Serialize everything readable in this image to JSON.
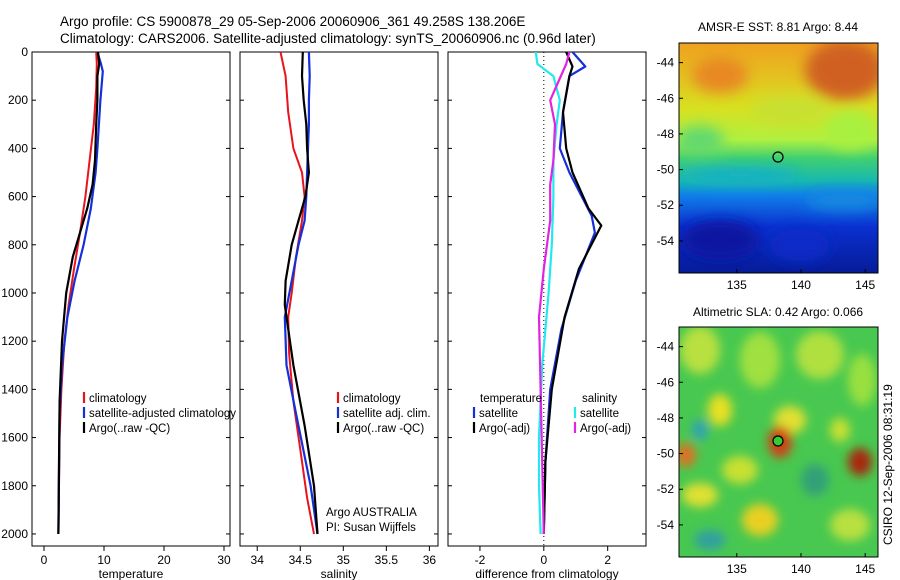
{
  "header": {
    "line1": "Argo profile: CS 5900878_29 05-Sep-2006 20060906_361 49.258S 138.206E",
    "line2": "Climatology: CARS2006. Satellite-adjusted climatology: synTS_20060906.nc (0.96d later)"
  },
  "side_label": "CSIRO 12-Sep-2006 08:31:19",
  "credit": {
    "line1": "Argo AUSTRALIA",
    "line2": "PI: Susan Wijffels"
  },
  "colors": {
    "red": "#e8141c",
    "blue": "#1530d8",
    "black": "#000000",
    "cyan": "#22e8f0",
    "magenta": "#e024e0"
  },
  "chart_data": [
    {
      "type": "line",
      "xlabel": "temperature",
      "ylabel": "",
      "xlim": [
        -2,
        31
      ],
      "ylim": [
        2050,
        0
      ],
      "xticks": [
        "0",
        "10",
        "20",
        "30"
      ],
      "yticks": [
        "0",
        "200",
        "400",
        "600",
        "800",
        "1000",
        "1200",
        "1400",
        "1600",
        "1800",
        "2000"
      ],
      "legend": [
        "climatology",
        "satellite-adjusted climatology",
        "Argo(..raw -QC)"
      ],
      "series": [
        {
          "name": "climatology",
          "color": "red",
          "x": [
            8.7,
            8.8,
            8.7,
            8.3,
            7.6,
            6.9,
            6.0,
            5.0,
            4.1,
            3.4,
            2.9,
            2.6,
            2.5,
            2.4
          ],
          "y": [
            0,
            50,
            150,
            300,
            450,
            600,
            750,
            900,
            1050,
            1200,
            1400,
            1600,
            1800,
            2000
          ]
        },
        {
          "name": "satellite-adjusted climatology",
          "color": "blue",
          "x": [
            8.9,
            9.5,
            9.8,
            9.4,
            8.9,
            8.6,
            7.8,
            6.6,
            5.1,
            3.9,
            3.0,
            2.6,
            2.5,
            2.4
          ],
          "y": [
            0,
            50,
            80,
            200,
            400,
            500,
            650,
            800,
            950,
            1100,
            1300,
            1500,
            1750,
            2000
          ]
        },
        {
          "name": "Argo(..raw -QC)",
          "color": "black",
          "x": [
            9.0,
            9.2,
            8.9,
            8.9,
            8.7,
            8.5,
            8.1,
            7.2,
            6.0,
            4.8,
            3.7,
            3.0,
            2.6,
            2.5,
            2.4
          ],
          "y": [
            0,
            50,
            100,
            200,
            300,
            450,
            550,
            650,
            750,
            850,
            1000,
            1200,
            1450,
            1700,
            2000
          ]
        }
      ]
    },
    {
      "type": "line",
      "xlabel": "salinity",
      "xlim": [
        33.8,
        36.1
      ],
      "ylim": [
        2050,
        0
      ],
      "xticks": [
        "34",
        "34.5",
        "35",
        "35.5",
        "36"
      ],
      "legend": [
        "climatology",
        "satellite adj. clim.",
        "Argo(..raw -QC)"
      ],
      "series": [
        {
          "name": "climatology",
          "color": "red",
          "x": [
            34.27,
            34.33,
            34.36,
            34.42,
            34.52,
            34.55,
            34.52,
            34.45,
            34.4,
            34.36,
            34.37,
            34.42,
            34.5,
            34.58,
            34.66
          ],
          "y": [
            0,
            100,
            250,
            400,
            500,
            600,
            700,
            850,
            1000,
            1100,
            1250,
            1450,
            1650,
            1850,
            2000
          ]
        },
        {
          "name": "satellite adj. clim.",
          "color": "blue",
          "x": [
            34.6,
            34.61,
            34.6,
            34.6,
            34.59,
            34.58,
            34.57,
            34.55,
            34.48,
            34.4,
            34.32,
            34.34,
            34.45,
            34.62,
            34.7
          ],
          "y": [
            0,
            100,
            200,
            300,
            400,
            500,
            600,
            700,
            800,
            950,
            1100,
            1300,
            1500,
            1800,
            2000
          ]
        },
        {
          "name": "Argo(..raw -QC)",
          "color": "black",
          "x": [
            34.53,
            34.52,
            34.54,
            34.57,
            34.58,
            34.6,
            34.56,
            34.48,
            34.4,
            34.33,
            34.32,
            34.42,
            34.55,
            34.66,
            34.7
          ],
          "y": [
            0,
            100,
            200,
            300,
            400,
            500,
            600,
            700,
            800,
            950,
            1050,
            1300,
            1550,
            1800,
            2000
          ]
        }
      ]
    },
    {
      "type": "line",
      "xlabel": "difference from climatology",
      "xlim": [
        -3,
        3.2
      ],
      "ylim": [
        2050,
        0
      ],
      "xticks": [
        "-2",
        "0",
        "2"
      ],
      "legend": [
        "temperature",
        "satellite",
        "Argo(-adj)",
        "salinity",
        "satellite",
        "Argo(-adj)"
      ],
      "series": [
        {
          "name": "temperature satellite",
          "color": "blue",
          "x": [
            0.9,
            1.3,
            0.8,
            0.6,
            0.5,
            0.8,
            1.5,
            1.6,
            1.0,
            0.55,
            0.2,
            0.05,
            0.0
          ],
          "y": [
            0,
            60,
            100,
            250,
            400,
            500,
            680,
            750,
            950,
            1150,
            1400,
            1700,
            2000
          ]
        },
        {
          "name": "temperature Argo(-adj)",
          "color": "black",
          "x": [
            0.7,
            0.9,
            0.8,
            0.6,
            0.7,
            0.9,
            1.4,
            1.8,
            1.1,
            0.65,
            0.25,
            0.05,
            0.0
          ],
          "y": [
            0,
            60,
            100,
            250,
            400,
            500,
            650,
            720,
            900,
            1100,
            1400,
            1700,
            2000
          ]
        },
        {
          "name": "salinity satellite",
          "color": "cyan",
          "x": [
            -0.25,
            -0.2,
            0.3,
            0.5,
            0.4,
            0.3,
            0.3,
            0.25,
            0.15,
            -0.05,
            -0.15,
            -0.15,
            -0.1
          ],
          "y": [
            0,
            50,
            100,
            200,
            300,
            450,
            600,
            800,
            1000,
            1300,
            1600,
            1800,
            2000
          ]
        },
        {
          "name": "salinity Argo(-adj)",
          "color": "magenta",
          "x": [
            0.8,
            0.7,
            0.2,
            0.35,
            0.3,
            0.2,
            0.2,
            0.0,
            -0.15,
            -0.1,
            -0.05,
            0.0
          ],
          "y": [
            0,
            50,
            200,
            300,
            450,
            550,
            700,
            900,
            1100,
            1400,
            1700,
            2000
          ]
        }
      ]
    },
    {
      "type": "heatmap",
      "title": "AMSR-E SST: 8.81 Argo: 8.44",
      "xlim": [
        130.5,
        146
      ],
      "ylim": [
        -55.8,
        -42.9
      ],
      "xticks": [
        "135",
        "140",
        "145"
      ],
      "yticks": [
        "-44",
        "-46",
        "-48",
        "-50",
        "-52",
        "-54"
      ],
      "marker": {
        "lon": 138.206,
        "lat": -49.258,
        "fill": "none"
      }
    },
    {
      "type": "heatmap",
      "title": "Altimetric SLA: 0.42 Argo: 0.066",
      "xlim": [
        130.5,
        146
      ],
      "ylim": [
        -55.8,
        -42.9
      ],
      "xticks": [
        "135",
        "140",
        "145"
      ],
      "yticks": [
        "-44",
        "-46",
        "-48",
        "-50",
        "-52",
        "-54"
      ],
      "marker": {
        "lon": 138.206,
        "lat": -49.258,
        "fill": "#33cc33"
      }
    }
  ]
}
